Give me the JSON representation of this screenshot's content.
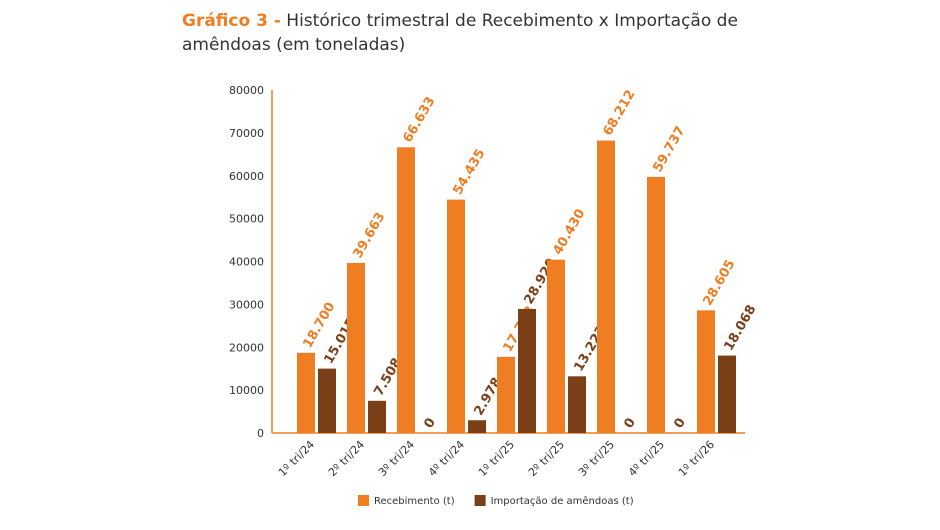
{
  "chart_data": {
    "type": "bar",
    "title_prefix": "Gráfico 3 -",
    "title": "Histórico trimestral de Recebimento x Importação de amêndoas (em toneladas)",
    "categories": [
      "1º tri/24",
      "2º tri/24",
      "3º tri/24",
      "4º tri/24",
      "1º tri/25",
      "2º tri/25",
      "3º tri/25",
      "4º tri/25",
      "1º tri/26"
    ],
    "series": [
      {
        "name": "Recebimento (t)",
        "color": "#ef7d22",
        "values": [
          18700,
          39663,
          66633,
          54435,
          17758,
          40430,
          68212,
          59737,
          28605
        ],
        "labels": [
          "18.700",
          "39.663",
          "66.633",
          "54.435",
          "17.758",
          "40.430",
          "68.212",
          "59.737",
          "28.605"
        ]
      },
      {
        "name": "Importação de amêndoas (t)",
        "color": "#7b3f17",
        "values": [
          15015,
          7508,
          0,
          2978,
          28920,
          13223,
          0,
          0,
          18068
        ],
        "labels": [
          "15.015",
          "7.508",
          "0",
          "2.978",
          "28.920",
          "13.223",
          "0",
          "0",
          "18.068"
        ]
      }
    ],
    "ylim": [
      0,
      80000
    ],
    "yticks": [
      0,
      10000,
      20000,
      30000,
      40000,
      50000,
      60000,
      70000,
      80000
    ],
    "legend": "bottom",
    "grid": false
  }
}
